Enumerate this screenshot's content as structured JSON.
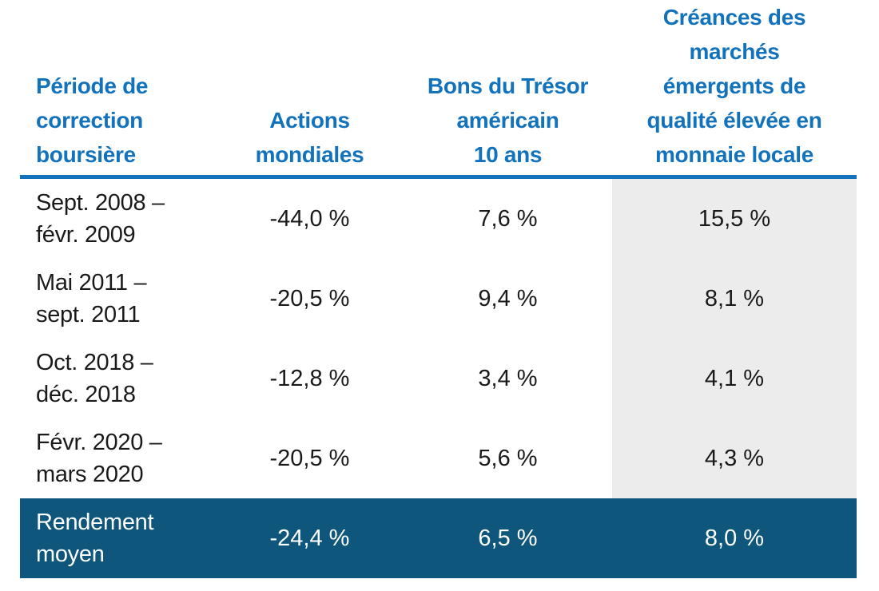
{
  "colors": {
    "accent_blue": "#1272BC",
    "dark_blue": "#0E567C",
    "column_gray": "#ECECEC",
    "text_dark": "#1A1A1A",
    "avg_row_text": "#FFFFFF"
  },
  "table": {
    "headers": {
      "period": "Période de\ncorrection\nboursière",
      "equities": "Actions\nmondiales",
      "treasury": "Bons du Trésor\naméricain\n10 ans",
      "em_debt": "Créances des\nmarchés\némergents de\nqualité élevée en\nmonnaie locale"
    },
    "rows": [
      {
        "period": "Sept. 2008 –\nfévr. 2009",
        "equities": "-44,0 %",
        "treasury": "7,6 %",
        "em_debt": "15,5 %"
      },
      {
        "period": "Mai 2011 –\nsept. 2011",
        "equities": "-20,5 %",
        "treasury": "9,4 %",
        "em_debt": "8,1 %"
      },
      {
        "period": "Oct. 2018 –\ndéc. 2018",
        "equities": "-12,8 %",
        "treasury": "3,4 %",
        "em_debt": "4,1 %"
      },
      {
        "period": "Févr. 2020 –\nmars 2020",
        "equities": "-20,5 %",
        "treasury": "5,6 %",
        "em_debt": "4,3 %"
      }
    ],
    "average_row": {
      "label": "Rendement\nmoyen",
      "equities": "-24,4 %",
      "treasury": "6,5 %",
      "em_debt": "8,0 %"
    }
  },
  "chart_data": {
    "type": "table",
    "title": "",
    "columns": [
      "Période de correction boursière",
      "Actions mondiales",
      "Bons du Trésor américain 10 ans",
      "Créances des marchés émergents de qualité élevée en monnaie locale"
    ],
    "categories": [
      "Sept. 2008 – févr. 2009",
      "Mai 2011 – sept. 2011",
      "Oct. 2018 – déc. 2018",
      "Févr. 2020 – mars 2020"
    ],
    "series": [
      {
        "name": "Actions mondiales",
        "values_pct": [
          -44.0,
          -20.5,
          -12.8,
          -20.5
        ],
        "average_pct": -24.4
      },
      {
        "name": "Bons du Trésor américain 10 ans",
        "values_pct": [
          7.6,
          9.4,
          3.4,
          5.6
        ],
        "average_pct": 6.5
      },
      {
        "name": "Créances des marchés émergents de qualité élevée en monnaie locale",
        "values_pct": [
          15.5,
          8.1,
          4.1,
          4.3
        ],
        "average_pct": 8.0
      }
    ],
    "average_row_label": "Rendement moyen",
    "layout_hints": {
      "highlighted_column": "Créances des marchés émergents de qualité élevée en monnaie locale",
      "highlighted_column_bg": "#ECECEC",
      "average_row_bg": "#0E567C",
      "header_text_color": "#1272BC",
      "header_rule": true
    }
  }
}
